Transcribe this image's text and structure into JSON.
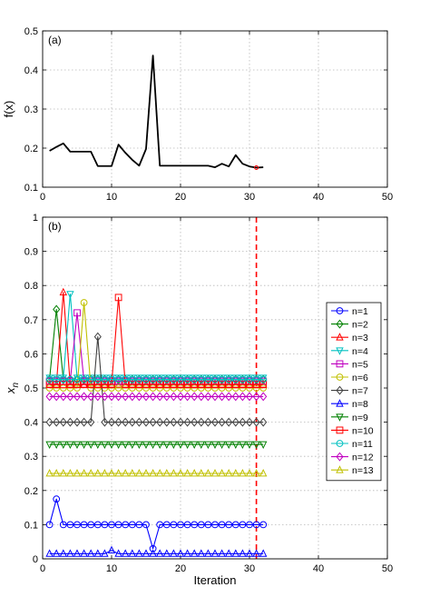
{
  "chart_data": [
    {
      "type": "line",
      "panel_label": "(a)",
      "ylabel": "f(x)",
      "xlabel": "",
      "xlim": [
        0,
        50
      ],
      "ylim": [
        0.1,
        0.5
      ],
      "xticks": [
        0,
        10,
        20,
        30,
        40,
        50
      ],
      "yticks": [
        0.1,
        0.2,
        0.3,
        0.4,
        0.5
      ],
      "grid": true,
      "series": [
        {
          "color": "#000000",
          "x": [
            1,
            2,
            3,
            4,
            5,
            6,
            7,
            8,
            9,
            10,
            11,
            12,
            13,
            14,
            15,
            16,
            17,
            18,
            19,
            20,
            21,
            22,
            23,
            24,
            25,
            26,
            27,
            28,
            29,
            30,
            31,
            32
          ],
          "values": [
            0.193,
            0.203,
            0.212,
            0.191,
            0.191,
            0.191,
            0.191,
            0.154,
            0.154,
            0.154,
            0.209,
            0.188,
            0.17,
            0.155,
            0.198,
            0.437,
            0.155,
            0.155,
            0.155,
            0.155,
            0.155,
            0.155,
            0.155,
            0.155,
            0.151,
            0.16,
            0.153,
            0.182,
            0.16,
            0.153,
            0.15,
            0.151
          ]
        }
      ],
      "marker_point": {
        "x": 31,
        "y": 0.15,
        "color": "#ff0000"
      }
    },
    {
      "type": "line",
      "panel_label": "(b)",
      "ylabel": "x_n",
      "xlabel": "Iteration",
      "xlim": [
        0,
        50
      ],
      "ylim": [
        0,
        1
      ],
      "xticks": [
        0,
        10,
        20,
        30,
        40,
        50
      ],
      "yticks": [
        0,
        0.1,
        0.2,
        0.3,
        0.4,
        0.5,
        0.6,
        0.7,
        0.8,
        0.9,
        1
      ],
      "grid": true,
      "vline": {
        "x": 31,
        "color": "#ff0000"
      },
      "legend_position": "right",
      "x": [
        1,
        2,
        3,
        4,
        5,
        6,
        7,
        8,
        9,
        10,
        11,
        12,
        13,
        14,
        15,
        16,
        17,
        18,
        19,
        20,
        21,
        22,
        23,
        24,
        25,
        26,
        27,
        28,
        29,
        30,
        31,
        32
      ],
      "series": [
        {
          "name": "n=1",
          "color": "#0000ff",
          "marker": "o",
          "values": [
            0.1,
            0.175,
            0.1,
            0.1,
            0.1,
            0.1,
            0.1,
            0.1,
            0.1,
            0.1,
            0.1,
            0.1,
            0.1,
            0.1,
            0.1,
            0.03,
            0.1,
            0.1,
            0.1,
            0.1,
            0.1,
            0.1,
            0.1,
            0.1,
            0.1,
            0.1,
            0.1,
            0.1,
            0.1,
            0.1,
            0.1,
            0.1
          ]
        },
        {
          "name": "n=2",
          "color": "#008000",
          "marker": "d",
          "values": [
            0.525,
            0.73,
            0.525,
            0.525,
            0.525,
            0.525,
            0.525,
            0.525,
            0.525,
            0.525,
            0.525,
            0.525,
            0.525,
            0.525,
            0.525,
            0.525,
            0.525,
            0.525,
            0.525,
            0.525,
            0.525,
            0.525,
            0.525,
            0.525,
            0.525,
            0.525,
            0.525,
            0.525,
            0.525,
            0.525,
            0.525,
            0.525
          ]
        },
        {
          "name": "n=3",
          "color": "#ff0000",
          "marker": "^",
          "values": [
            0.51,
            0.51,
            0.78,
            0.51,
            0.51,
            0.51,
            0.51,
            0.51,
            0.51,
            0.51,
            0.51,
            0.51,
            0.51,
            0.51,
            0.51,
            0.51,
            0.51,
            0.51,
            0.51,
            0.51,
            0.51,
            0.51,
            0.51,
            0.51,
            0.51,
            0.51,
            0.51,
            0.51,
            0.51,
            0.51,
            0.51,
            0.51
          ]
        },
        {
          "name": "n=4",
          "color": "#00c0c0",
          "marker": "v",
          "values": [
            0.53,
            0.53,
            0.53,
            0.775,
            0.53,
            0.53,
            0.53,
            0.53,
            0.53,
            0.53,
            0.53,
            0.53,
            0.53,
            0.53,
            0.53,
            0.53,
            0.53,
            0.53,
            0.53,
            0.53,
            0.53,
            0.53,
            0.53,
            0.53,
            0.53,
            0.53,
            0.53,
            0.53,
            0.53,
            0.53,
            0.53,
            0.53
          ]
        },
        {
          "name": "n=5",
          "color": "#c000c0",
          "marker": "s",
          "values": [
            0.52,
            0.52,
            0.52,
            0.52,
            0.72,
            0.52,
            0.52,
            0.52,
            0.52,
            0.52,
            0.52,
            0.52,
            0.52,
            0.52,
            0.52,
            0.52,
            0.52,
            0.52,
            0.52,
            0.52,
            0.52,
            0.52,
            0.52,
            0.52,
            0.52,
            0.52,
            0.52,
            0.52,
            0.52,
            0.52,
            0.52,
            0.52
          ]
        },
        {
          "name": "n=6",
          "color": "#c0c000",
          "marker": "o",
          "values": [
            0.5,
            0.5,
            0.5,
            0.5,
            0.5,
            0.75,
            0.5,
            0.5,
            0.5,
            0.5,
            0.5,
            0.5,
            0.5,
            0.5,
            0.5,
            0.5,
            0.5,
            0.5,
            0.5,
            0.5,
            0.5,
            0.5,
            0.5,
            0.5,
            0.5,
            0.5,
            0.5,
            0.5,
            0.5,
            0.5,
            0.5,
            0.5
          ]
        },
        {
          "name": "n=7",
          "color": "#404040",
          "marker": "d",
          "values": [
            0.4,
            0.4,
            0.4,
            0.4,
            0.4,
            0.4,
            0.4,
            0.65,
            0.4,
            0.4,
            0.4,
            0.4,
            0.4,
            0.4,
            0.4,
            0.4,
            0.4,
            0.4,
            0.4,
            0.4,
            0.4,
            0.4,
            0.4,
            0.4,
            0.4,
            0.4,
            0.4,
            0.4,
            0.4,
            0.4,
            0.4,
            0.4
          ]
        },
        {
          "name": "n=8",
          "color": "#0000ff",
          "marker": "^",
          "values": [
            0.015,
            0.015,
            0.015,
            0.015,
            0.015,
            0.015,
            0.015,
            0.015,
            0.015,
            0.025,
            0.015,
            0.015,
            0.015,
            0.015,
            0.015,
            0.015,
            0.015,
            0.015,
            0.015,
            0.015,
            0.015,
            0.015,
            0.015,
            0.015,
            0.015,
            0.015,
            0.015,
            0.015,
            0.015,
            0.015,
            0.015,
            0.015
          ]
        },
        {
          "name": "n=9",
          "color": "#008000",
          "marker": "v",
          "values": [
            0.335,
            0.335,
            0.335,
            0.335,
            0.335,
            0.335,
            0.335,
            0.335,
            0.335,
            0.335,
            0.335,
            0.335,
            0.335,
            0.335,
            0.335,
            0.335,
            0.335,
            0.335,
            0.335,
            0.335,
            0.335,
            0.335,
            0.335,
            0.335,
            0.335,
            0.335,
            0.335,
            0.335,
            0.335,
            0.335,
            0.335,
            0.335
          ]
        },
        {
          "name": "n=10",
          "color": "#ff0000",
          "marker": "s",
          "values": [
            0.51,
            0.51,
            0.51,
            0.51,
            0.51,
            0.51,
            0.51,
            0.51,
            0.51,
            0.51,
            0.765,
            0.51,
            0.51,
            0.51,
            0.51,
            0.51,
            0.51,
            0.51,
            0.51,
            0.51,
            0.51,
            0.51,
            0.51,
            0.51,
            0.51,
            0.51,
            0.51,
            0.51,
            0.51,
            0.51,
            0.51,
            0.51
          ]
        },
        {
          "name": "n=11",
          "color": "#00c0c0",
          "marker": "o",
          "values": [
            0.525,
            0.525,
            0.525,
            0.525,
            0.525,
            0.525,
            0.525,
            0.525,
            0.525,
            0.525,
            0.525,
            0.525,
            0.525,
            0.525,
            0.525,
            0.525,
            0.525,
            0.525,
            0.525,
            0.525,
            0.525,
            0.525,
            0.525,
            0.525,
            0.525,
            0.525,
            0.525,
            0.525,
            0.525,
            0.525,
            0.525,
            0.525
          ]
        },
        {
          "name": "n=12",
          "color": "#c000c0",
          "marker": "d",
          "values": [
            0.475,
            0.475,
            0.475,
            0.475,
            0.475,
            0.475,
            0.475,
            0.475,
            0.475,
            0.475,
            0.475,
            0.475,
            0.475,
            0.475,
            0.475,
            0.475,
            0.475,
            0.475,
            0.475,
            0.475,
            0.475,
            0.475,
            0.475,
            0.475,
            0.475,
            0.475,
            0.475,
            0.475,
            0.475,
            0.475,
            0.475,
            0.475
          ]
        },
        {
          "name": "n=13",
          "color": "#c0c000",
          "marker": "^",
          "values": [
            0.25,
            0.25,
            0.25,
            0.25,
            0.25,
            0.25,
            0.25,
            0.25,
            0.25,
            0.25,
            0.25,
            0.25,
            0.25,
            0.25,
            0.25,
            0.25,
            0.25,
            0.25,
            0.25,
            0.25,
            0.25,
            0.25,
            0.25,
            0.25,
            0.25,
            0.25,
            0.25,
            0.25,
            0.25,
            0.25,
            0.25,
            0.25
          ]
        }
      ]
    }
  ]
}
